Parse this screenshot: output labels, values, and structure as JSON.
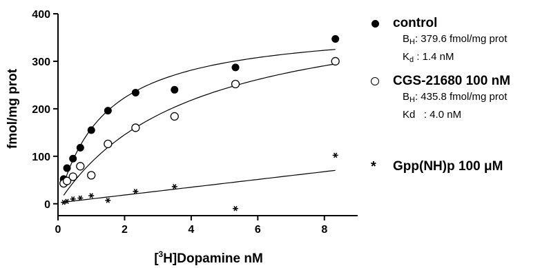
{
  "chart_data": {
    "type": "scatter",
    "title": "",
    "xlabel_prefix": "[",
    "xlabel_sup": "3",
    "xlabel_main": "H]Dopamine nM",
    "ylabel": "fmol/mg prot",
    "xlim": [
      0,
      9
    ],
    "ylim": [
      -25,
      400
    ],
    "xticks": [
      0,
      2,
      4,
      6,
      8
    ],
    "xtick_labels": [
      "0",
      "2",
      "4",
      "6",
      "8"
    ],
    "yticks": [
      0,
      100,
      200,
      300,
      400
    ],
    "ytick_labels": [
      "0",
      "100",
      "200",
      "300",
      "400"
    ],
    "grid": false,
    "legend_position": "right",
    "series": [
      {
        "name": "control",
        "marker": "filled-circle",
        "x": [
          0.17,
          0.27,
          0.45,
          0.67,
          1.0,
          1.5,
          2.33,
          3.5,
          5.33,
          8.33
        ],
        "y": [
          52,
          75,
          95,
          118,
          155,
          196,
          234,
          240,
          287,
          347
        ],
        "fit": {
          "model": "hyperbola",
          "Bmax": 379.6,
          "Kd": 1.4,
          "x_from": 0.17,
          "x_to": 8.33
        },
        "detail": {
          "bmax_sym": "B",
          "bmax_sub": "H",
          "bmax_text": ": 379.6 fmol/mg prot",
          "kd_sym": "K",
          "kd_sub": "d",
          "kd_text": ": 1.4 nM"
        }
      },
      {
        "name": "CGS-21680 100 nM",
        "marker": "open-circle",
        "x": [
          0.17,
          0.27,
          0.45,
          0.67,
          1.0,
          1.5,
          2.33,
          3.5,
          5.33,
          8.33
        ],
        "y": [
          43,
          48,
          57,
          79,
          60,
          126,
          160,
          184,
          252,
          300
        ],
        "fit": {
          "model": "hyperbola",
          "Bmax": 435.8,
          "Kd": 4.0,
          "x_from": 0.17,
          "x_to": 8.33
        },
        "detail": {
          "bmax_sym": "B",
          "bmax_sub": "H",
          "bmax_text": ": 435.8 fmol/mg prot",
          "kd_sym": "Kd",
          "kd_sub": "",
          "kd_text": ": 4.0 nM"
        }
      },
      {
        "name": "Gpp(NH)p 100 μM",
        "marker": "asterisk",
        "x": [
          0.17,
          0.27,
          0.45,
          0.67,
          1.0,
          1.5,
          2.33,
          3.5,
          5.33,
          8.33
        ],
        "y": [
          3,
          5,
          10,
          12,
          17,
          7,
          26,
          36,
          -10,
          102
        ],
        "fit": {
          "model": "linear",
          "slope": 8.2,
          "intercept": 2,
          "x_from": 0.17,
          "x_to": 8.33
        }
      }
    ]
  }
}
